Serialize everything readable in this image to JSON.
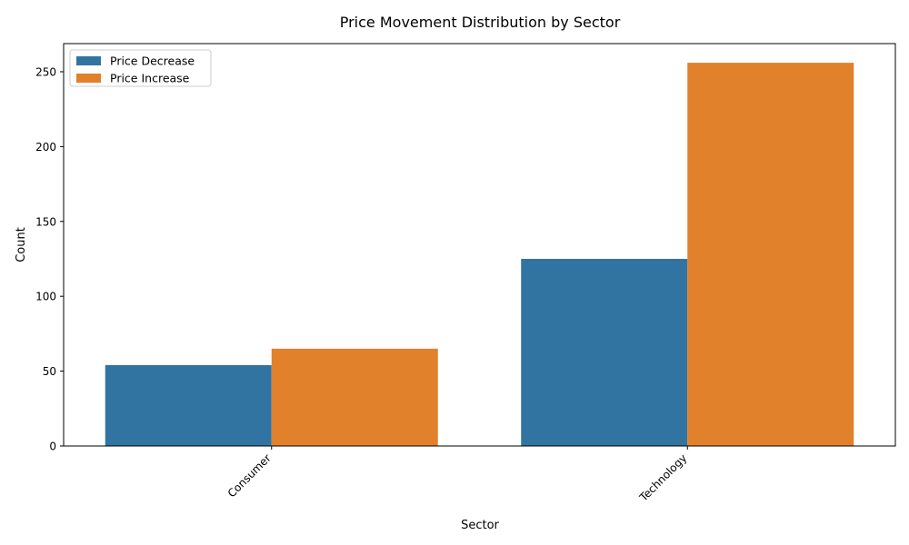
{
  "chart_data": {
    "type": "bar",
    "title": "Price Movement Distribution by Sector",
    "xlabel": "Sector",
    "ylabel": "Count",
    "categories": [
      "Consumer",
      "Technology"
    ],
    "series": [
      {
        "name": "Price Decrease",
        "color": "#3274a1",
        "values": [
          54,
          125
        ]
      },
      {
        "name": "Price Increase",
        "color": "#e1812c",
        "values": [
          65,
          256
        ]
      }
    ],
    "ylim": [
      0,
      268.8
    ],
    "yticks": [
      0,
      50,
      100,
      150,
      200,
      250
    ],
    "x_tick_rotation": "45°",
    "grid": false,
    "legend_position": "top-left"
  }
}
